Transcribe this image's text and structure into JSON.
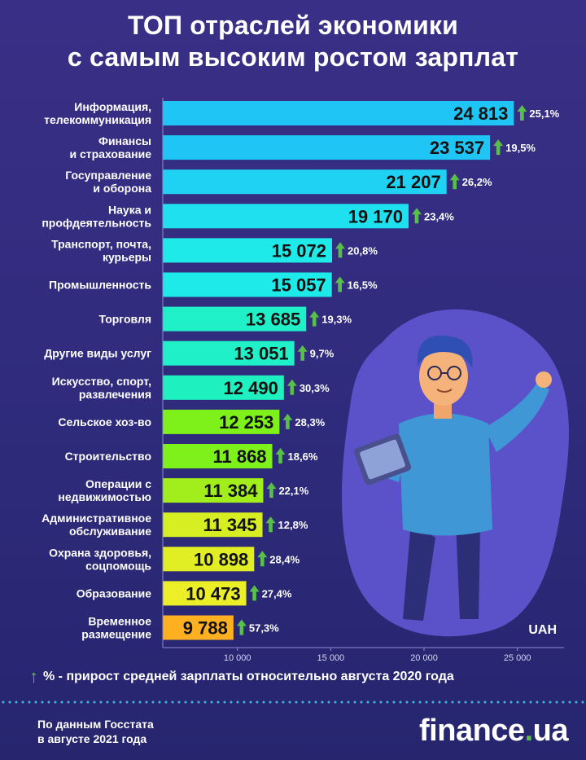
{
  "title": {
    "line1": "ТОП отраслей экономики",
    "line2": "с самым высоким ростом зарплат"
  },
  "chart_data": {
    "type": "bar",
    "orientation": "horizontal",
    "unit_label": "UAH",
    "xlim": [
      6000,
      27500
    ],
    "xticks": [
      10000,
      15000,
      20000,
      25000
    ],
    "xtick_labels": [
      "10 000",
      "15 000",
      "20 000",
      "25 000"
    ],
    "bars": [
      {
        "label": [
          "Информация,",
          "телекоммуникация"
        ],
        "value": 24813,
        "value_label": "24 813",
        "growth": "25,1%",
        "color": "#1fc6f5"
      },
      {
        "label": [
          "Финансы",
          "и страхование"
        ],
        "value": 23537,
        "value_label": "23 537",
        "growth": "19,5%",
        "color": "#1fc6f5"
      },
      {
        "label": [
          "Госуправление",
          "и оборона"
        ],
        "value": 21207,
        "value_label": "21 207",
        "growth": "26,2%",
        "color": "#1fd2f3"
      },
      {
        "label": [
          "Наука и",
          "профдеятельность"
        ],
        "value": 19170,
        "value_label": "19 170",
        "growth": "23,4%",
        "color": "#1fe0ef"
      },
      {
        "label": [
          "Транспорт, почта,",
          "курьеры"
        ],
        "value": 15072,
        "value_label": "15 072",
        "growth": "20,8%",
        "color": "#1feaea"
      },
      {
        "label": [
          "Промышленность"
        ],
        "value": 15057,
        "value_label": "15 057",
        "growth": "16,5%",
        "color": "#1feaea"
      },
      {
        "label": [
          "Торговля"
        ],
        "value": 13685,
        "value_label": "13 685",
        "growth": "19,3%",
        "color": "#1ff0c8"
      },
      {
        "label": [
          "Другие виды услуг"
        ],
        "value": 13051,
        "value_label": "13 051",
        "growth": "9,7%",
        "color": "#1ff0c8"
      },
      {
        "label": [
          "Искусство, спорт,",
          "развлечения"
        ],
        "value": 12490,
        "value_label": "12 490",
        "growth": "30,3%",
        "color": "#1ff0c0"
      },
      {
        "label": [
          "Сельское хоз-во"
        ],
        "value": 12253,
        "value_label": "12 253",
        "growth": "28,3%",
        "color": "#7ef01a"
      },
      {
        "label": [
          "Строительство"
        ],
        "value": 11868,
        "value_label": "11 868",
        "growth": "18,6%",
        "color": "#7ef01a"
      },
      {
        "label": [
          "Операции с",
          "недвижимостью"
        ],
        "value": 11384,
        "value_label": "11 384",
        "growth": "22,1%",
        "color": "#a2ee1c"
      },
      {
        "label": [
          "Административное",
          "обслуживание"
        ],
        "value": 11345,
        "value_label": "11 345",
        "growth": "12,8%",
        "color": "#d6ee22"
      },
      {
        "label": [
          "Охрана здоровья,",
          "соцпомощь"
        ],
        "value": 10898,
        "value_label": "10 898",
        "growth": "28,4%",
        "color": "#e2ee24"
      },
      {
        "label": [
          "Образование"
        ],
        "value": 10473,
        "value_label": "10 473",
        "growth": "27,4%",
        "color": "#ecee28"
      },
      {
        "label": [
          "Временное",
          "размещение"
        ],
        "value": 9788,
        "value_label": "9 788",
        "growth": "57,3%",
        "color": "#ffb020"
      }
    ]
  },
  "legend": {
    "text": "% - прирост средней зарплаты относительно августа 2020 года"
  },
  "footer": {
    "source_line1": "По данным Госстата",
    "source_line2": "в августе 2021 года",
    "logo_main": "finance",
    "logo_dot": ".",
    "logo_suffix": "ua"
  },
  "colors": {
    "background": "#2f2b7c",
    "growth_arrow": "#58c04a",
    "blob": "#5b52c9"
  }
}
